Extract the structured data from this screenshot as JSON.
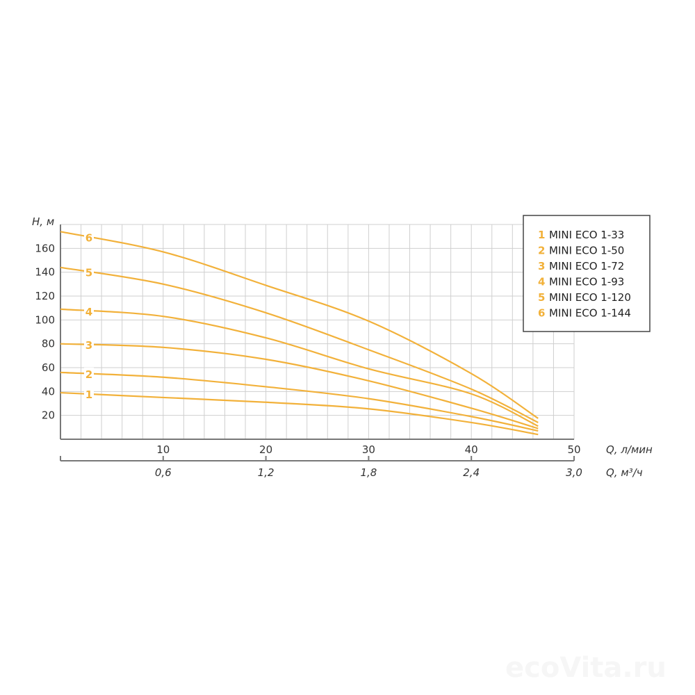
{
  "chart_data": {
    "type": "line",
    "title": "",
    "ylabel": "H, м",
    "xlabel": "Q, л/мин",
    "x2label": "Q, м³/ч",
    "xlim": [
      0,
      50
    ],
    "ylim": [
      0,
      180
    ],
    "grid": true,
    "legend_position": "top-right",
    "y_ticks": [
      "20",
      "40",
      "60",
      "80",
      "100",
      "120",
      "140",
      "160"
    ],
    "x_ticks": [
      "10",
      "20",
      "30",
      "40",
      "50"
    ],
    "x2_ticks": [
      "0,6",
      "1,2",
      "1,8",
      "2,4",
      "3,0"
    ],
    "line_color": "#f2b13a",
    "x": [
      0,
      10,
      20,
      30,
      40,
      46.5
    ],
    "series": [
      {
        "label": "1",
        "name": "MINI ECO 1-33",
        "values": [
          39,
          35,
          31,
          25.5,
          14,
          4
        ]
      },
      {
        "label": "2",
        "name": "MINI ECO 1-50",
        "values": [
          56,
          52,
          44,
          34,
          19,
          7
        ]
      },
      {
        "label": "3",
        "name": "MINI ECO 1-72",
        "values": [
          80,
          77,
          67,
          49,
          26,
          9
        ]
      },
      {
        "label": "4",
        "name": "MINI ECO 1-93",
        "values": [
          109,
          103,
          85,
          59,
          38,
          11
        ]
      },
      {
        "label": "5",
        "name": "MINI ECO 1-120",
        "values": [
          144,
          130,
          106,
          75,
          42,
          14
        ]
      },
      {
        "label": "6",
        "name": "MINI ECO 1-144",
        "values": [
          174,
          157,
          129,
          99,
          55,
          17.5
        ]
      }
    ]
  },
  "watermark": "ecoVita.ru"
}
